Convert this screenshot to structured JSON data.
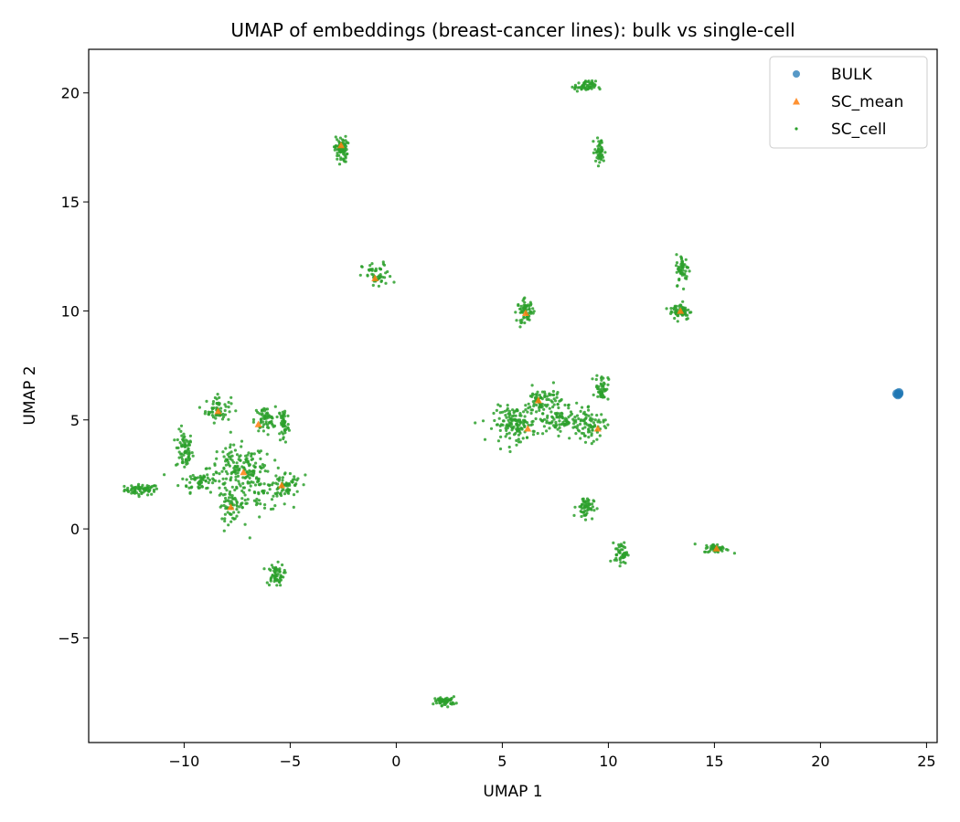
{
  "chart_data": {
    "type": "scatter",
    "title": "UMAP of embeddings (breast-cancer lines): bulk vs single-cell",
    "xlabel": "UMAP 1",
    "ylabel": "UMAP 2",
    "xlim": [
      -14.5,
      25.5
    ],
    "ylim": [
      -9.8,
      22
    ],
    "x_ticks": [
      -10,
      -5,
      0,
      5,
      10,
      15,
      20,
      25
    ],
    "y_ticks": [
      -5,
      0,
      5,
      10,
      15,
      20
    ],
    "x_tick_labels": [
      "−10",
      "−5",
      "0",
      "5",
      "10",
      "15",
      "20",
      "25"
    ],
    "y_tick_labels": [
      "−5",
      "0",
      "5",
      "10",
      "15",
      "20"
    ],
    "grid": false,
    "legend_position": "top-right",
    "series": [
      {
        "name": "BULK",
        "marker": "circle",
        "color": "#1f77b4",
        "points": [
          [
            23.6,
            6.2
          ],
          [
            23.7,
            6.25
          ],
          [
            23.65,
            6.15
          ],
          [
            23.7,
            6.2
          ]
        ]
      },
      {
        "name": "SC_mean",
        "marker": "triangle",
        "color": "#ff7f0e",
        "points": [
          [
            -2.6,
            17.6
          ],
          [
            -1.0,
            11.5
          ],
          [
            6.1,
            9.9
          ],
          [
            13.4,
            10.0
          ],
          [
            -7.8,
            1.0
          ],
          [
            -7.2,
            2.6
          ],
          [
            -6.5,
            4.8
          ],
          [
            -5.4,
            2.0
          ],
          [
            6.2,
            4.6
          ],
          [
            9.5,
            4.6
          ],
          [
            6.7,
            5.9
          ],
          [
            15.1,
            -0.9
          ],
          [
            -8.4,
            5.4
          ]
        ]
      },
      {
        "name": "SC_cell",
        "marker": "dot",
        "color": "#2ca02c",
        "clusters": [
          {
            "cx": -12.0,
            "cy": 1.8,
            "sx": 0.4,
            "sy": 0.12,
            "n": 70
          },
          {
            "cx": -10.0,
            "cy": 3.6,
            "sx": 0.2,
            "sy": 0.45,
            "n": 70
          },
          {
            "cx": -9.2,
            "cy": 2.2,
            "sx": 0.5,
            "sy": 0.25,
            "n": 60
          },
          {
            "cx": -8.4,
            "cy": 5.5,
            "sx": 0.3,
            "sy": 0.3,
            "n": 60
          },
          {
            "cx": -7.8,
            "cy": 1.1,
            "sx": 0.3,
            "sy": 0.35,
            "n": 60
          },
          {
            "cx": -7.5,
            "cy": 2.8,
            "sx": 0.7,
            "sy": 0.5,
            "n": 120
          },
          {
            "cx": -6.5,
            "cy": 2.0,
            "sx": 0.7,
            "sy": 0.6,
            "n": 100
          },
          {
            "cx": -6.2,
            "cy": 5.0,
            "sx": 0.25,
            "sy": 0.3,
            "n": 60
          },
          {
            "cx": -5.3,
            "cy": 4.8,
            "sx": 0.12,
            "sy": 0.45,
            "n": 50
          },
          {
            "cx": -5.2,
            "cy": 2.0,
            "sx": 0.35,
            "sy": 0.3,
            "n": 60
          },
          {
            "cx": -5.7,
            "cy": -2.1,
            "sx": 0.2,
            "sy": 0.25,
            "n": 60
          },
          {
            "cx": -2.6,
            "cy": 17.4,
            "sx": 0.15,
            "sy": 0.3,
            "n": 70
          },
          {
            "cx": -0.9,
            "cy": 11.6,
            "sx": 0.35,
            "sy": 0.3,
            "n": 50
          },
          {
            "cx": 2.3,
            "cy": -7.9,
            "sx": 0.25,
            "sy": 0.1,
            "n": 60
          },
          {
            "cx": 5.6,
            "cy": 4.8,
            "sx": 0.5,
            "sy": 0.4,
            "n": 140
          },
          {
            "cx": 6.1,
            "cy": 10.0,
            "sx": 0.2,
            "sy": 0.25,
            "n": 60
          },
          {
            "cx": 6.9,
            "cy": 5.8,
            "sx": 0.45,
            "sy": 0.35,
            "n": 90
          },
          {
            "cx": 7.9,
            "cy": 4.9,
            "sx": 0.7,
            "sy": 0.3,
            "n": 100
          },
          {
            "cx": 9.2,
            "cy": 4.7,
            "sx": 0.3,
            "sy": 0.35,
            "n": 60
          },
          {
            "cx": 9.7,
            "cy": 6.5,
            "sx": 0.15,
            "sy": 0.3,
            "n": 50
          },
          {
            "cx": 8.9,
            "cy": 1.0,
            "sx": 0.2,
            "sy": 0.25,
            "n": 60
          },
          {
            "cx": 8.9,
            "cy": 20.3,
            "sx": 0.25,
            "sy": 0.12,
            "n": 60
          },
          {
            "cx": 9.6,
            "cy": 17.3,
            "sx": 0.12,
            "sy": 0.3,
            "n": 50
          },
          {
            "cx": 10.6,
            "cy": -1.1,
            "sx": 0.15,
            "sy": 0.25,
            "n": 50
          },
          {
            "cx": 13.4,
            "cy": 10.0,
            "sx": 0.25,
            "sy": 0.2,
            "n": 60
          },
          {
            "cx": 13.5,
            "cy": 11.9,
            "sx": 0.15,
            "sy": 0.35,
            "n": 50
          },
          {
            "cx": 15.1,
            "cy": -0.9,
            "sx": 0.3,
            "sy": 0.1,
            "n": 50
          }
        ]
      }
    ]
  }
}
